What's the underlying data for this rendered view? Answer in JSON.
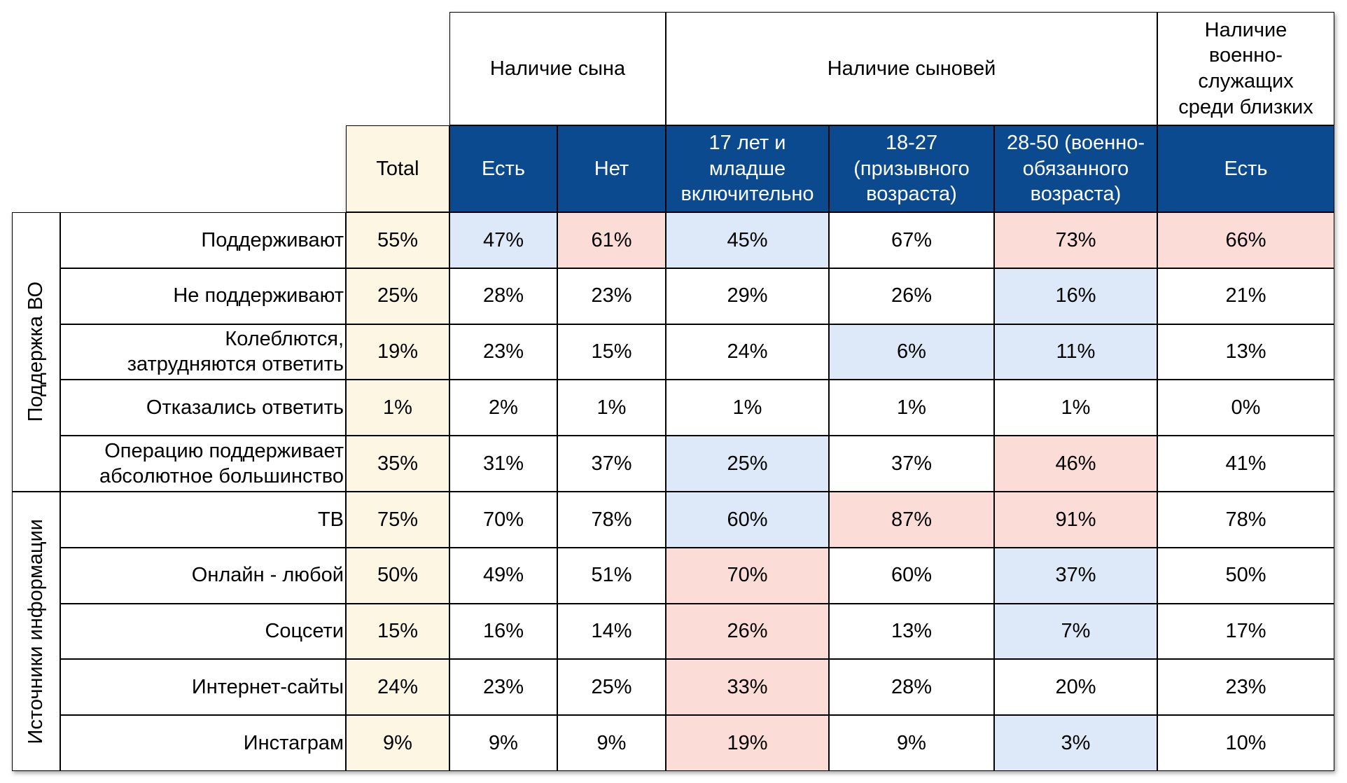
{
  "header": {
    "total": "Total",
    "groups": [
      {
        "label": "Наличие сына",
        "columns": [
          "Есть",
          "Нет"
        ]
      },
      {
        "label": "Наличие сыновей",
        "columns": [
          "17 лет и\nмладше\nвключительно",
          "18-27\n(призывного\nвозраста)",
          "28-50 (военно-\nобязанного\nвозраста)"
        ]
      },
      {
        "label": "Наличие\nвоенно-\nслужащих\nсреди близких",
        "columns": [
          "Есть"
        ]
      }
    ]
  },
  "row_groups": [
    {
      "label": "Поддержка ВО",
      "rows": [
        {
          "label": "Поддерживают",
          "total": "55%",
          "values": [
            "47%",
            "61%",
            "45%",
            "67%",
            "73%",
            "66%"
          ],
          "colors": [
            "#dde9f8",
            "#fcdcd6",
            "#dde9f8",
            null,
            "#fcdcd6",
            "#fcdcd6"
          ]
        },
        {
          "label": "Не поддерживают",
          "total": "25%",
          "values": [
            "28%",
            "23%",
            "29%",
            "26%",
            "16%",
            "21%"
          ],
          "colors": [
            null,
            null,
            null,
            null,
            "#dde9f8",
            null
          ]
        },
        {
          "label": "Колеблются,\nзатрудняются ответить",
          "total": "19%",
          "values": [
            "23%",
            "15%",
            "24%",
            "6%",
            "11%",
            "13%"
          ],
          "colors": [
            null,
            null,
            null,
            "#dde9f8",
            "#dde9f8",
            null
          ]
        },
        {
          "label": "Отказались ответить",
          "total": "1%",
          "values": [
            "2%",
            "1%",
            "1%",
            "1%",
            "1%",
            "0%"
          ],
          "colors": [
            null,
            null,
            null,
            null,
            null,
            null
          ]
        },
        {
          "label": "Операцию поддерживает\nабсолютное большинство",
          "total": "35%",
          "values": [
            "31%",
            "37%",
            "25%",
            "37%",
            "46%",
            "41%"
          ],
          "colors": [
            null,
            null,
            "#dde9f8",
            null,
            "#fcdcd6",
            null
          ]
        }
      ]
    },
    {
      "label": "Источники информации",
      "rows": [
        {
          "label": "ТВ",
          "total": "75%",
          "values": [
            "70%",
            "78%",
            "60%",
            "87%",
            "91%",
            "78%"
          ],
          "colors": [
            null,
            null,
            "#dde9f8",
            "#fcdcd6",
            "#fcdcd6",
            null
          ]
        },
        {
          "label": "Онлайн - любой",
          "total": "50%",
          "values": [
            "49%",
            "51%",
            "70%",
            "60%",
            "37%",
            "50%"
          ],
          "colors": [
            null,
            null,
            "#fcdcd6",
            null,
            "#dde9f8",
            null
          ]
        },
        {
          "label": "Соцсети",
          "total": "15%",
          "values": [
            "16%",
            "14%",
            "26%",
            "13%",
            "7%",
            "17%"
          ],
          "colors": [
            null,
            null,
            "#fcdcd6",
            null,
            "#dde9f8",
            null
          ]
        },
        {
          "label": "Интернет-сайты",
          "total": "24%",
          "values": [
            "23%",
            "25%",
            "33%",
            "28%",
            "20%",
            "23%"
          ],
          "colors": [
            null,
            null,
            "#fcdcd6",
            null,
            null,
            null
          ]
        },
        {
          "label": "Инстаграм",
          "total": "9%",
          "values": [
            "9%",
            "9%",
            "19%",
            "9%",
            "3%",
            "10%"
          ],
          "colors": [
            null,
            null,
            "#fcdcd6",
            null,
            "#dde9f8",
            null
          ]
        }
      ]
    }
  ],
  "total_color": "#fdf6e2",
  "header_color": "#0b4a8f"
}
